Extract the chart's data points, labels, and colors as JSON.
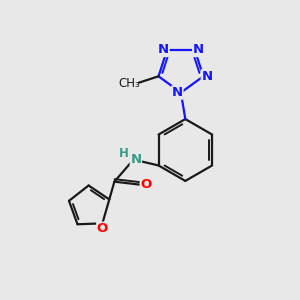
{
  "background_color": "#e8e8e8",
  "bond_color": "#1a1a1a",
  "nitrogen_color": "#1414ff",
  "oxygen_color": "#ff0000",
  "nh_color": "#3a9a8a",
  "figsize": [
    3.0,
    3.0
  ],
  "dpi": 100,
  "xlim": [
    0,
    10
  ],
  "ylim": [
    0,
    10
  ]
}
